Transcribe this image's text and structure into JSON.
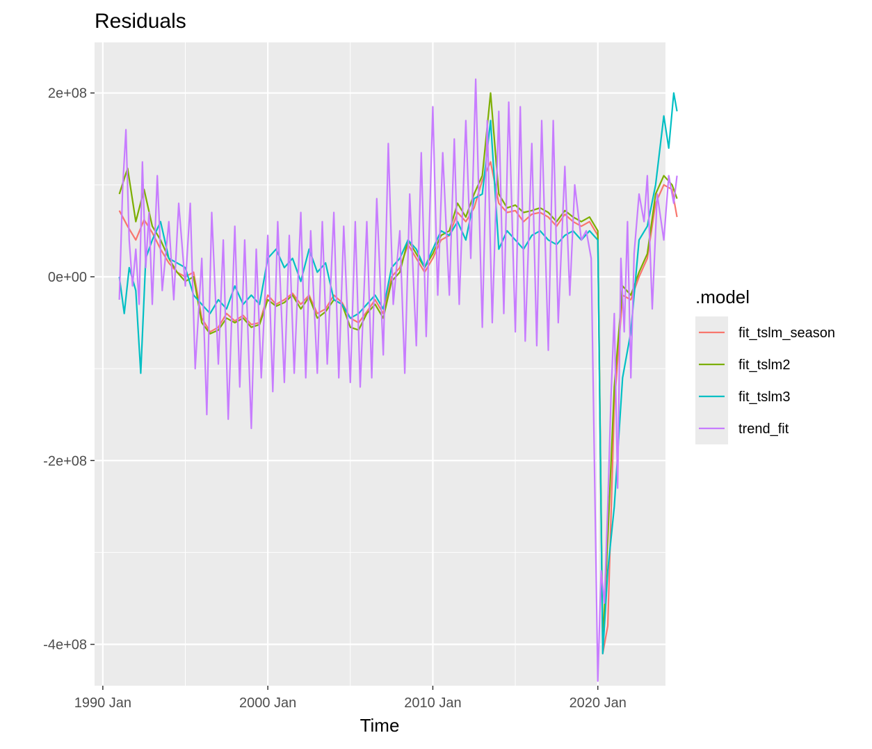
{
  "chart_data": {
    "type": "line",
    "title": "Residuals",
    "xlabel": "Time",
    "ylabel": "",
    "legend_title": ".model",
    "legend_position": "right",
    "grid": true,
    "background": "#ebebeb",
    "xlim": [
      1990.5,
      2025.1
    ],
    "ylim": [
      -445000000,
      255000000
    ],
    "x_ticks": [
      {
        "value": 1991.0,
        "label": "1990 Jan"
      },
      {
        "value": 2001.0,
        "label": "2000 Jan"
      },
      {
        "value": 2011.0,
        "label": "2010 Jan"
      },
      {
        "value": 2021.0,
        "label": "2020 Jan"
      }
    ],
    "y_ticks": [
      {
        "value": 200000000,
        "label": "2e+08"
      },
      {
        "value": 0,
        "label": "0e+00"
      },
      {
        "value": -200000000,
        "label": "-2e+08"
      },
      {
        "value": -400000000,
        "label": "-4e+08"
      }
    ],
    "series": [
      {
        "name": "fit_tslm_season",
        "color": "#f8766d",
        "x": [
          1992.0,
          1992.5,
          1993.0,
          1993.5,
          1994.0,
          1994.5,
          1995.0,
          1995.5,
          1996.0,
          1996.5,
          1997.0,
          1997.5,
          1998.0,
          1998.5,
          1999.0,
          1999.5,
          2000.0,
          2000.5,
          2001.0,
          2001.5,
          2002.0,
          2002.5,
          2003.0,
          2003.5,
          2004.0,
          2004.5,
          2005.0,
          2005.5,
          2006.0,
          2006.5,
          2007.0,
          2007.5,
          2008.0,
          2008.5,
          2009.0,
          2009.5,
          2010.0,
          2010.5,
          2011.0,
          2011.5,
          2012.0,
          2012.5,
          2013.0,
          2013.5,
          2014.0,
          2014.5,
          2015.0,
          2015.5,
          2016.0,
          2016.5,
          2017.0,
          2017.5,
          2018.0,
          2018.5,
          2019.0,
          2019.5,
          2020.0,
          2020.5,
          2021.0,
          2021.3,
          2021.6,
          2022.0,
          2022.5,
          2023.0,
          2023.5,
          2024.0,
          2024.5,
          2025.0,
          2025.5,
          2025.8
        ],
        "values": [
          72000000,
          55000000,
          40000000,
          62000000,
          48000000,
          30000000,
          15000000,
          5000000,
          0,
          5000000,
          -45000000,
          -60000000,
          -55000000,
          -40000000,
          -48000000,
          -42000000,
          -52000000,
          -50000000,
          -20000000,
          -30000000,
          -25000000,
          -18000000,
          -30000000,
          -20000000,
          -40000000,
          -35000000,
          -20000000,
          -28000000,
          -45000000,
          -50000000,
          -38000000,
          -25000000,
          -40000000,
          0,
          10000000,
          35000000,
          20000000,
          5000000,
          20000000,
          40000000,
          45000000,
          70000000,
          60000000,
          75000000,
          105000000,
          125000000,
          80000000,
          70000000,
          72000000,
          60000000,
          68000000,
          70000000,
          65000000,
          55000000,
          68000000,
          60000000,
          55000000,
          60000000,
          45000000,
          -410000000,
          -380000000,
          -140000000,
          -20000000,
          -25000000,
          0,
          20000000,
          80000000,
          100000000,
          95000000,
          65000000
        ]
      },
      {
        "name": "fit_tslm2",
        "color": "#7cae00",
        "x": [
          1992.0,
          1992.5,
          1993.0,
          1993.5,
          1994.0,
          1994.5,
          1995.0,
          1995.5,
          1996.0,
          1996.5,
          1997.0,
          1997.5,
          1998.0,
          1998.5,
          1999.0,
          1999.5,
          2000.0,
          2000.5,
          2001.0,
          2001.5,
          2002.0,
          2002.5,
          2003.0,
          2003.5,
          2004.0,
          2004.5,
          2005.0,
          2005.5,
          2006.0,
          2006.5,
          2007.0,
          2007.5,
          2008.0,
          2008.5,
          2009.0,
          2009.5,
          2010.0,
          2010.5,
          2011.0,
          2011.5,
          2012.0,
          2012.5,
          2013.0,
          2013.5,
          2014.0,
          2014.5,
          2015.0,
          2015.5,
          2016.0,
          2016.5,
          2017.0,
          2017.5,
          2018.0,
          2018.5,
          2019.0,
          2019.5,
          2020.0,
          2020.5,
          2021.0,
          2021.3,
          2021.6,
          2022.0,
          2022.5,
          2023.0,
          2023.5,
          2024.0,
          2024.5,
          2025.0,
          2025.5,
          2025.8
        ],
        "values": [
          90000000,
          118000000,
          60000000,
          95000000,
          55000000,
          40000000,
          20000000,
          5000000,
          -5000000,
          0,
          -50000000,
          -62000000,
          -58000000,
          -45000000,
          -50000000,
          -45000000,
          -55000000,
          -52000000,
          -25000000,
          -32000000,
          -28000000,
          -20000000,
          -35000000,
          -22000000,
          -45000000,
          -38000000,
          -25000000,
          -30000000,
          -55000000,
          -58000000,
          -40000000,
          -30000000,
          -45000000,
          -5000000,
          5000000,
          40000000,
          25000000,
          10000000,
          25000000,
          45000000,
          50000000,
          80000000,
          65000000,
          90000000,
          110000000,
          200000000,
          90000000,
          75000000,
          78000000,
          70000000,
          72000000,
          75000000,
          70000000,
          60000000,
          72000000,
          65000000,
          60000000,
          65000000,
          50000000,
          -400000000,
          -285000000,
          -120000000,
          -10000000,
          -20000000,
          5000000,
          25000000,
          90000000,
          110000000,
          100000000,
          85000000
        ]
      },
      {
        "name": "fit_tslm3",
        "color": "#00bfc4",
        "x": [
          1992.0,
          1992.3,
          1992.6,
          1993.0,
          1993.3,
          1993.6,
          1994.0,
          1994.5,
          1995.0,
          1995.5,
          1996.0,
          1996.5,
          1997.0,
          1997.5,
          1998.0,
          1998.5,
          1999.0,
          1999.5,
          2000.0,
          2000.5,
          2001.0,
          2001.5,
          2002.0,
          2002.5,
          2003.0,
          2003.5,
          2004.0,
          2004.5,
          2005.0,
          2005.5,
          2006.0,
          2006.5,
          2007.0,
          2007.5,
          2008.0,
          2008.5,
          2009.0,
          2009.5,
          2010.0,
          2010.5,
          2011.0,
          2011.5,
          2012.0,
          2012.5,
          2013.0,
          2013.5,
          2014.0,
          2014.5,
          2015.0,
          2015.5,
          2016.0,
          2016.5,
          2017.0,
          2017.5,
          2018.0,
          2018.5,
          2019.0,
          2019.5,
          2020.0,
          2020.5,
          2021.0,
          2021.3,
          2021.6,
          2022.0,
          2022.5,
          2023.0,
          2023.5,
          2024.0,
          2024.5,
          2025.0,
          2025.3,
          2025.6,
          2025.8
        ],
        "values": [
          0,
          -40000000,
          10000000,
          -15000000,
          -105000000,
          20000000,
          40000000,
          60000000,
          20000000,
          15000000,
          10000000,
          -20000000,
          -30000000,
          -40000000,
          -25000000,
          -35000000,
          -10000000,
          -30000000,
          -20000000,
          -30000000,
          20000000,
          30000000,
          10000000,
          20000000,
          -5000000,
          30000000,
          5000000,
          15000000,
          -25000000,
          -30000000,
          -45000000,
          -40000000,
          -30000000,
          -20000000,
          -35000000,
          10000000,
          20000000,
          40000000,
          30000000,
          10000000,
          30000000,
          50000000,
          45000000,
          60000000,
          40000000,
          85000000,
          90000000,
          170000000,
          30000000,
          50000000,
          40000000,
          30000000,
          45000000,
          50000000,
          40000000,
          35000000,
          45000000,
          50000000,
          40000000,
          50000000,
          40000000,
          -410000000,
          -320000000,
          -250000000,
          -110000000,
          -60000000,
          40000000,
          55000000,
          100000000,
          175000000,
          140000000,
          200000000,
          180000000
        ]
      },
      {
        "name": "trend_fit",
        "color": "#c77cff",
        "x": [
          1992.0,
          1992.2,
          1992.4,
          1992.6,
          1992.8,
          1993.0,
          1993.2,
          1993.4,
          1993.6,
          1993.8,
          1994.0,
          1994.3,
          1994.6,
          1995.0,
          1995.3,
          1995.6,
          1996.0,
          1996.3,
          1996.6,
          1997.0,
          1997.3,
          1997.6,
          1998.0,
          1998.3,
          1998.6,
          1999.0,
          1999.3,
          1999.6,
          2000.0,
          2000.3,
          2000.6,
          2001.0,
          2001.3,
          2001.6,
          2002.0,
          2002.3,
          2002.6,
          2003.0,
          2003.3,
          2003.6,
          2004.0,
          2004.3,
          2004.6,
          2005.0,
          2005.3,
          2005.6,
          2006.0,
          2006.3,
          2006.6,
          2007.0,
          2007.3,
          2007.6,
          2008.0,
          2008.3,
          2008.6,
          2009.0,
          2009.3,
          2009.6,
          2010.0,
          2010.3,
          2010.6,
          2011.0,
          2011.3,
          2011.6,
          2012.0,
          2012.3,
          2012.6,
          2013.0,
          2013.3,
          2013.6,
          2014.0,
          2014.3,
          2014.6,
          2015.0,
          2015.3,
          2015.6,
          2016.0,
          2016.3,
          2016.6,
          2017.0,
          2017.3,
          2017.6,
          2018.0,
          2018.3,
          2018.6,
          2019.0,
          2019.3,
          2019.6,
          2020.0,
          2020.3,
          2020.6,
          2021.0,
          2021.2,
          2021.4,
          2021.6,
          2021.8,
          2022.0,
          2022.2,
          2022.4,
          2022.6,
          2022.8,
          2023.0,
          2023.2,
          2023.5,
          2023.8,
          2024.0,
          2024.3,
          2024.6,
          2025.0,
          2025.3,
          2025.6,
          2025.8
        ],
        "values": [
          -25000000,
          95000000,
          160000000,
          40000000,
          -10000000,
          30000000,
          -30000000,
          125000000,
          10000000,
          70000000,
          -30000000,
          110000000,
          -15000000,
          60000000,
          -25000000,
          80000000,
          -10000000,
          80000000,
          -100000000,
          20000000,
          -150000000,
          70000000,
          -95000000,
          40000000,
          -155000000,
          55000000,
          -120000000,
          40000000,
          -165000000,
          30000000,
          -110000000,
          45000000,
          -125000000,
          60000000,
          -115000000,
          45000000,
          -105000000,
          70000000,
          -110000000,
          50000000,
          -105000000,
          60000000,
          -95000000,
          70000000,
          -110000000,
          55000000,
          -115000000,
          60000000,
          -120000000,
          60000000,
          -110000000,
          85000000,
          -85000000,
          145000000,
          -30000000,
          50000000,
          -105000000,
          90000000,
          -75000000,
          135000000,
          -65000000,
          185000000,
          -20000000,
          135000000,
          -20000000,
          150000000,
          -30000000,
          170000000,
          20000000,
          215000000,
          -55000000,
          170000000,
          -50000000,
          180000000,
          -40000000,
          190000000,
          -60000000,
          185000000,
          -70000000,
          145000000,
          -75000000,
          170000000,
          -80000000,
          170000000,
          -50000000,
          120000000,
          -20000000,
          100000000,
          40000000,
          50000000,
          20000000,
          -440000000,
          -320000000,
          -355000000,
          -250000000,
          -130000000,
          -40000000,
          -230000000,
          20000000,
          -60000000,
          60000000,
          -110000000,
          25000000,
          90000000,
          60000000,
          110000000,
          -35000000,
          90000000,
          40000000,
          110000000,
          80000000,
          110000000
        ]
      }
    ]
  }
}
